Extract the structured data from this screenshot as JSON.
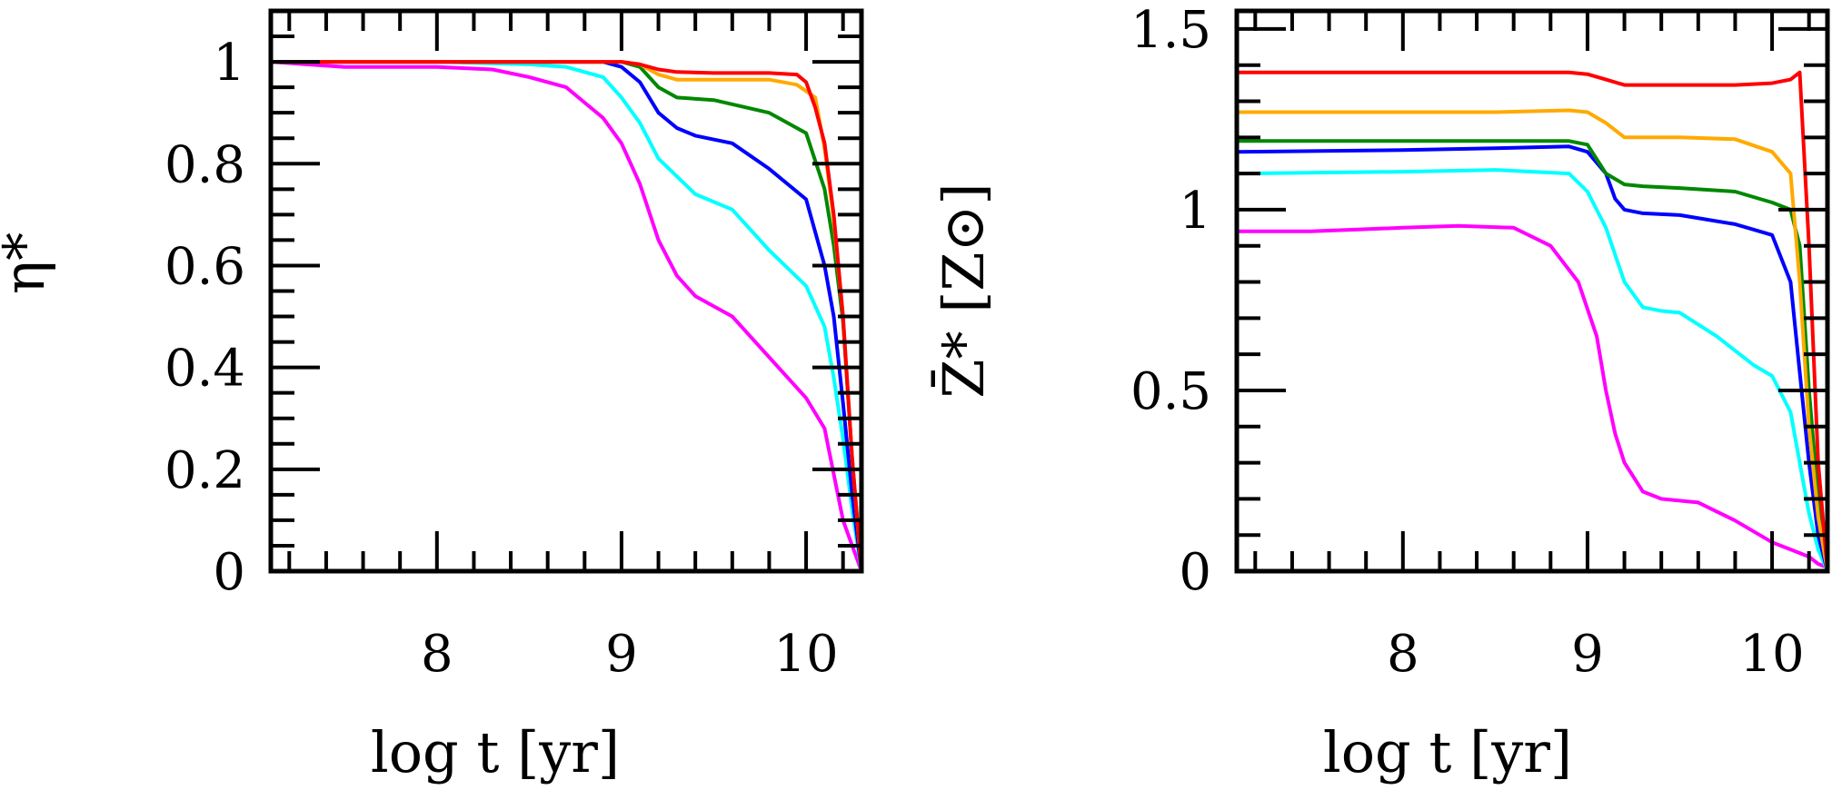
{
  "chart_data": [
    {
      "type": "line",
      "title": "",
      "xlabel": "log t [yr]",
      "ylabel": "η*",
      "xlim": [
        7.1,
        10.3
      ],
      "ylim": [
        0,
        1.1
      ],
      "x_ticks": [
        8,
        9,
        10
      ],
      "x_tick_labels": [
        "8",
        "9",
        "10"
      ],
      "y_ticks": [
        0,
        0.2,
        0.4,
        0.6,
        0.8,
        1
      ],
      "y_tick_labels": [
        "0",
        "0.2",
        "0.4",
        "0.6",
        "0.8",
        "1"
      ],
      "grid": false,
      "legend": "none",
      "series": [
        {
          "color": "#ff00ff",
          "x": [
            7.1,
            7.5,
            7.8,
            8.0,
            8.3,
            8.5,
            8.7,
            8.9,
            9.0,
            9.1,
            9.2,
            9.3,
            9.4,
            9.6,
            9.8,
            10.0,
            10.1,
            10.2,
            10.25,
            10.3
          ],
          "y": [
            1.0,
            0.99,
            0.99,
            0.99,
            0.985,
            0.97,
            0.95,
            0.89,
            0.84,
            0.76,
            0.65,
            0.58,
            0.54,
            0.5,
            0.42,
            0.34,
            0.28,
            0.1,
            0.05,
            0.0
          ]
        },
        {
          "color": "#00ffff",
          "x": [
            7.1,
            8.0,
            8.5,
            8.7,
            8.9,
            9.0,
            9.1,
            9.2,
            9.4,
            9.6,
            9.8,
            10.0,
            10.1,
            10.15,
            10.2,
            10.25,
            10.3
          ],
          "y": [
            1.0,
            1.0,
            0.995,
            0.99,
            0.97,
            0.93,
            0.88,
            0.81,
            0.74,
            0.71,
            0.63,
            0.56,
            0.48,
            0.38,
            0.26,
            0.12,
            0.0
          ]
        },
        {
          "color": "#0000ff",
          "x": [
            7.1,
            8.5,
            8.9,
            9.0,
            9.1,
            9.2,
            9.3,
            9.4,
            9.6,
            9.8,
            10.0,
            10.1,
            10.15,
            10.2,
            10.25,
            10.3
          ],
          "y": [
            1.0,
            1.0,
            1.0,
            0.99,
            0.96,
            0.9,
            0.87,
            0.855,
            0.84,
            0.79,
            0.73,
            0.6,
            0.5,
            0.33,
            0.15,
            0.0
          ]
        },
        {
          "color": "#008800",
          "x": [
            7.1,
            8.5,
            8.9,
            9.0,
            9.1,
            9.2,
            9.3,
            9.5,
            9.8,
            10.0,
            10.1,
            10.15,
            10.2,
            10.25,
            10.3
          ],
          "y": [
            1.0,
            1.0,
            1.0,
            1.0,
            0.99,
            0.95,
            0.93,
            0.925,
            0.9,
            0.86,
            0.75,
            0.64,
            0.49,
            0.22,
            0.0
          ]
        },
        {
          "color": "#ffaa00",
          "x": [
            7.1,
            8.5,
            8.9,
            9.0,
            9.1,
            9.2,
            9.3,
            9.5,
            9.8,
            9.95,
            10.05,
            10.1,
            10.15,
            10.2,
            10.25,
            10.3
          ],
          "y": [
            1.0,
            1.0,
            1.0,
            1.0,
            0.995,
            0.975,
            0.965,
            0.965,
            0.965,
            0.955,
            0.93,
            0.83,
            0.69,
            0.5,
            0.22,
            0.0
          ]
        },
        {
          "color": "#ff0000",
          "x": [
            7.1,
            8.5,
            8.9,
            9.0,
            9.1,
            9.2,
            9.3,
            9.5,
            9.8,
            9.95,
            10.0,
            10.05,
            10.1,
            10.15,
            10.2,
            10.25,
            10.3
          ],
          "y": [
            1.0,
            1.0,
            1.0,
            1.0,
            0.995,
            0.985,
            0.98,
            0.978,
            0.978,
            0.975,
            0.96,
            0.91,
            0.84,
            0.7,
            0.5,
            0.22,
            0.0
          ]
        }
      ]
    },
    {
      "type": "line",
      "title": "",
      "xlabel": "log t [yr]",
      "ylabel": "Z̄* [Z⊙]",
      "xlim": [
        7.1,
        10.3
      ],
      "ylim": [
        0,
        1.55
      ],
      "x_ticks": [
        8,
        9,
        10
      ],
      "x_tick_labels": [
        "8",
        "9",
        "10"
      ],
      "y_ticks": [
        0,
        0.5,
        1,
        1.5
      ],
      "y_tick_labels": [
        "0",
        "0.5",
        "1",
        "1.5"
      ],
      "grid": false,
      "legend": "none",
      "series": [
        {
          "color": "#ff00ff",
          "x": [
            7.1,
            7.5,
            8.0,
            8.3,
            8.6,
            8.8,
            8.95,
            9.05,
            9.1,
            9.15,
            9.2,
            9.3,
            9.4,
            9.6,
            9.8,
            10.0,
            10.1,
            10.2,
            10.25,
            10.3
          ],
          "y": [
            0.94,
            0.94,
            0.95,
            0.955,
            0.95,
            0.9,
            0.8,
            0.65,
            0.5,
            0.38,
            0.3,
            0.22,
            0.2,
            0.19,
            0.14,
            0.08,
            0.06,
            0.04,
            0.02,
            0.01
          ]
        },
        {
          "color": "#00ffff",
          "x": [
            7.1,
            8.0,
            8.5,
            8.9,
            9.0,
            9.1,
            9.2,
            9.3,
            9.4,
            9.5,
            9.7,
            9.9,
            10.0,
            10.1,
            10.15,
            10.2,
            10.25,
            10.3
          ],
          "y": [
            1.1,
            1.105,
            1.11,
            1.1,
            1.05,
            0.95,
            0.8,
            0.73,
            0.72,
            0.715,
            0.65,
            0.57,
            0.54,
            0.44,
            0.3,
            0.16,
            0.06,
            0.0
          ]
        },
        {
          "color": "#0000ff",
          "x": [
            7.1,
            8.0,
            8.5,
            8.9,
            9.0,
            9.1,
            9.15,
            9.2,
            9.3,
            9.5,
            9.8,
            10.0,
            10.1,
            10.15,
            10.2,
            10.25,
            10.3
          ],
          "y": [
            1.16,
            1.165,
            1.17,
            1.175,
            1.16,
            1.1,
            1.03,
            1.0,
            0.99,
            0.985,
            0.96,
            0.93,
            0.8,
            0.55,
            0.3,
            0.1,
            0.0
          ]
        },
        {
          "color": "#008800",
          "x": [
            7.1,
            8.0,
            8.5,
            8.9,
            9.0,
            9.1,
            9.2,
            9.3,
            9.5,
            9.8,
            10.0,
            10.1,
            10.15,
            10.2,
            10.25,
            10.3
          ],
          "y": [
            1.19,
            1.19,
            1.19,
            1.19,
            1.18,
            1.1,
            1.07,
            1.065,
            1.06,
            1.05,
            1.02,
            1.0,
            0.9,
            0.5,
            0.2,
            0.0
          ]
        },
        {
          "color": "#ffaa00",
          "x": [
            7.1,
            8.0,
            8.5,
            8.9,
            9.0,
            9.1,
            9.2,
            9.5,
            9.8,
            10.0,
            10.1,
            10.15,
            10.2,
            10.25,
            10.3
          ],
          "y": [
            1.27,
            1.27,
            1.27,
            1.275,
            1.27,
            1.24,
            1.2,
            1.2,
            1.195,
            1.16,
            1.1,
            0.8,
            0.4,
            0.15,
            0.0
          ]
        },
        {
          "color": "#ff0000",
          "x": [
            7.1,
            8.0,
            8.5,
            8.9,
            9.0,
            9.1,
            9.2,
            9.4,
            9.6,
            9.8,
            10.0,
            10.1,
            10.15,
            10.2,
            10.25,
            10.3
          ],
          "y": [
            1.38,
            1.38,
            1.38,
            1.38,
            1.375,
            1.36,
            1.345,
            1.345,
            1.345,
            1.345,
            1.35,
            1.36,
            1.38,
            0.9,
            0.3,
            0.0
          ]
        }
      ]
    }
  ]
}
